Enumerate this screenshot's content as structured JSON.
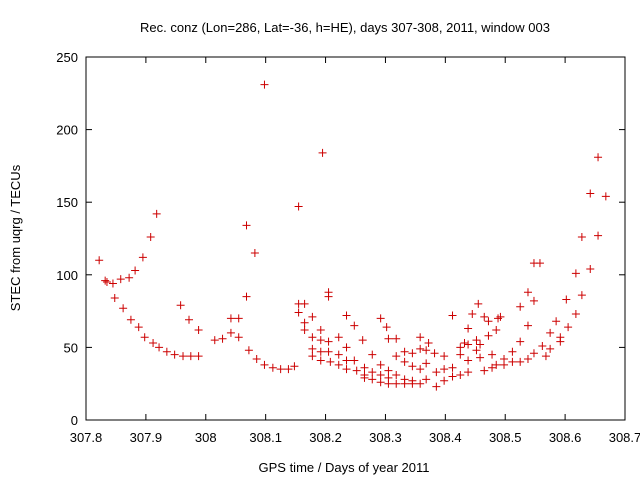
{
  "chart_data": {
    "type": "scatter",
    "title": "Rec. conz (Lon=286, Lat=-36, h=HE), days 307-308, 2011, window 003",
    "xlabel": "GPS time / Days of year 2011",
    "ylabel": "STEC from uqrg / TECUs",
    "xlim": [
      307.8,
      308.7
    ],
    "ylim": [
      0,
      250
    ],
    "xticks": [
      307.8,
      307.9,
      308,
      308.1,
      308.2,
      308.3,
      308.4,
      308.5,
      308.6,
      308.7
    ],
    "xtick_labels": [
      "307.8",
      "307.9",
      "308",
      "308.1",
      "308.2",
      "308.3",
      "308.4",
      "308.5",
      "308.6",
      "308.7"
    ],
    "yticks": [
      0,
      50,
      100,
      150,
      200,
      250
    ],
    "ytick_labels": [
      "0",
      "50",
      "100",
      "150",
      "200",
      "250"
    ],
    "marker": "+",
    "color": "#cc0000",
    "grid": false,
    "points": [
      [
        307.822,
        110
      ],
      [
        307.832,
        96
      ],
      [
        307.835,
        95
      ],
      [
        307.845,
        94
      ],
      [
        307.848,
        84
      ],
      [
        307.858,
        97
      ],
      [
        307.862,
        77
      ],
      [
        307.872,
        98
      ],
      [
        307.875,
        69
      ],
      [
        307.882,
        103
      ],
      [
        307.888,
        64
      ],
      [
        307.895,
        112
      ],
      [
        307.898,
        57
      ],
      [
        307.908,
        126
      ],
      [
        307.912,
        53
      ],
      [
        307.918,
        142
      ],
      [
        307.922,
        50
      ],
      [
        307.935,
        47
      ],
      [
        307.948,
        45
      ],
      [
        307.958,
        79
      ],
      [
        307.962,
        44
      ],
      [
        307.972,
        69
      ],
      [
        307.975,
        44
      ],
      [
        307.988,
        62
      ],
      [
        307.988,
        44
      ],
      [
        308.015,
        55
      ],
      [
        308.028,
        56
      ],
      [
        308.042,
        60
      ],
      [
        308.042,
        70
      ],
      [
        308.055,
        70
      ],
      [
        308.055,
        57
      ],
      [
        308.068,
        134
      ],
      [
        308.068,
        85
      ],
      [
        308.072,
        48
      ],
      [
        308.082,
        115
      ],
      [
        308.085,
        42
      ],
      [
        308.098,
        231
      ],
      [
        308.098,
        38
      ],
      [
        308.112,
        36
      ],
      [
        308.125,
        35
      ],
      [
        308.138,
        35
      ],
      [
        308.148,
        37
      ],
      [
        308.155,
        147
      ],
      [
        308.155,
        80
      ],
      [
        308.155,
        74
      ],
      [
        308.165,
        80
      ],
      [
        308.165,
        67
      ],
      [
        308.165,
        62
      ],
      [
        308.178,
        71
      ],
      [
        308.178,
        57
      ],
      [
        308.178,
        49
      ],
      [
        308.178,
        44
      ],
      [
        308.195,
        184
      ],
      [
        308.192,
        62
      ],
      [
        308.192,
        55
      ],
      [
        308.192,
        47
      ],
      [
        308.192,
        41
      ],
      [
        308.205,
        88
      ],
      [
        308.205,
        85
      ],
      [
        308.205,
        54
      ],
      [
        308.205,
        47
      ],
      [
        308.208,
        40
      ],
      [
        308.222,
        57
      ],
      [
        308.222,
        45
      ],
      [
        308.222,
        38
      ],
      [
        308.235,
        72
      ],
      [
        308.235,
        50
      ],
      [
        308.235,
        41
      ],
      [
        308.235,
        35
      ],
      [
        308.248,
        65
      ],
      [
        308.248,
        41
      ],
      [
        308.252,
        34
      ],
      [
        308.262,
        55
      ],
      [
        308.265,
        36
      ],
      [
        308.265,
        31
      ],
      [
        308.265,
        29
      ],
      [
        308.278,
        45
      ],
      [
        308.278,
        33
      ],
      [
        308.278,
        28
      ],
      [
        308.292,
        70
      ],
      [
        308.292,
        38
      ],
      [
        308.292,
        31
      ],
      [
        308.292,
        26
      ],
      [
        308.302,
        64
      ],
      [
        308.305,
        56
      ],
      [
        308.305,
        34
      ],
      [
        308.305,
        29
      ],
      [
        308.305,
        25
      ],
      [
        308.318,
        56
      ],
      [
        308.318,
        44
      ],
      [
        308.318,
        31
      ],
      [
        308.318,
        25
      ],
      [
        308.332,
        47
      ],
      [
        308.332,
        40
      ],
      [
        308.332,
        28
      ],
      [
        308.332,
        25
      ],
      [
        308.345,
        46
      ],
      [
        308.345,
        37
      ],
      [
        308.345,
        27
      ],
      [
        308.345,
        25
      ],
      [
        308.358,
        57
      ],
      [
        308.358,
        49
      ],
      [
        308.358,
        35
      ],
      [
        308.358,
        25
      ],
      [
        308.368,
        48
      ],
      [
        308.368,
        39
      ],
      [
        308.368,
        28
      ],
      [
        308.372,
        53
      ],
      [
        308.382,
        46
      ],
      [
        308.385,
        33
      ],
      [
        308.385,
        23
      ],
      [
        308.398,
        44
      ],
      [
        308.398,
        35
      ],
      [
        308.398,
        27
      ],
      [
        308.412,
        72
      ],
      [
        308.412,
        36
      ],
      [
        308.412,
        30
      ],
      [
        308.425,
        50
      ],
      [
        308.425,
        45
      ],
      [
        308.425,
        31
      ],
      [
        308.432,
        53
      ],
      [
        308.438,
        63
      ],
      [
        308.438,
        52
      ],
      [
        308.438,
        41
      ],
      [
        308.438,
        33
      ],
      [
        308.445,
        73
      ],
      [
        308.452,
        55
      ],
      [
        308.452,
        48
      ],
      [
        308.455,
        80
      ],
      [
        308.458,
        52
      ],
      [
        308.458,
        43
      ],
      [
        308.465,
        71
      ],
      [
        308.465,
        34
      ],
      [
        308.472,
        58
      ],
      [
        308.472,
        68
      ],
      [
        308.478,
        45
      ],
      [
        308.478,
        36
      ],
      [
        308.485,
        62
      ],
      [
        308.485,
        38
      ],
      [
        308.488,
        70
      ],
      [
        308.492,
        71
      ],
      [
        308.498,
        42
      ],
      [
        308.498,
        38
      ],
      [
        308.512,
        47
      ],
      [
        308.512,
        40
      ],
      [
        308.525,
        78
      ],
      [
        308.525,
        54
      ],
      [
        308.525,
        40
      ],
      [
        308.538,
        88
      ],
      [
        308.538,
        65
      ],
      [
        308.538,
        42
      ],
      [
        308.548,
        108
      ],
      [
        308.548,
        82
      ],
      [
        308.548,
        46
      ],
      [
        308.558,
        108
      ],
      [
        308.562,
        51
      ],
      [
        308.568,
        44
      ],
      [
        308.575,
        60
      ],
      [
        308.575,
        49
      ],
      [
        308.585,
        68
      ],
      [
        308.592,
        54
      ],
      [
        308.592,
        57
      ],
      [
        308.602,
        83
      ],
      [
        308.605,
        64
      ],
      [
        308.618,
        101
      ],
      [
        308.618,
        73
      ],
      [
        308.628,
        126
      ],
      [
        308.628,
        86
      ],
      [
        308.642,
        156
      ],
      [
        308.642,
        104
      ],
      [
        308.655,
        181
      ],
      [
        308.655,
        127
      ],
      [
        308.668,
        154
      ]
    ]
  }
}
